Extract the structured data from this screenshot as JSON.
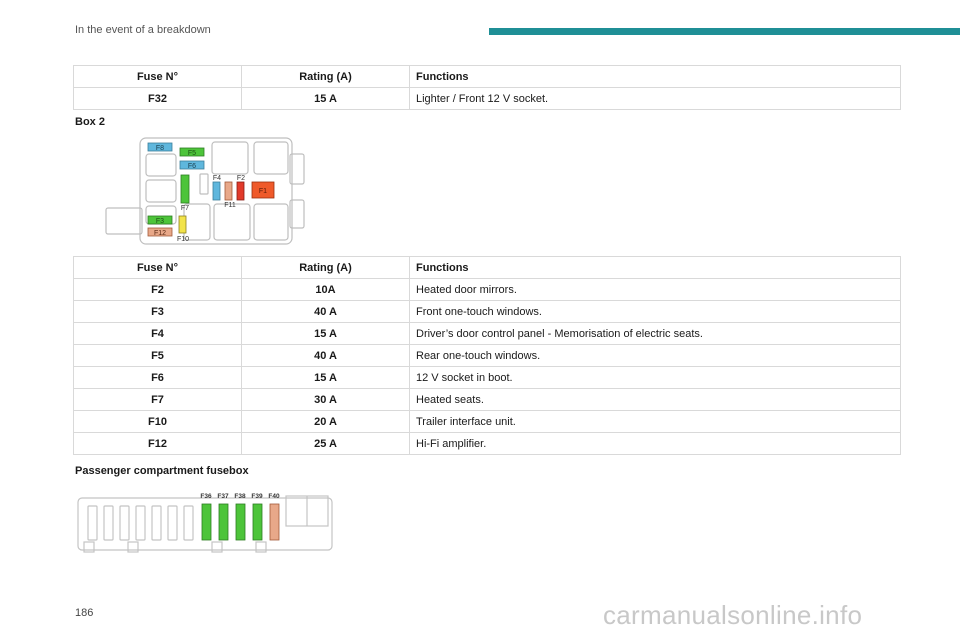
{
  "header": {
    "section_title": "In the event of a breakdown",
    "accent_color": "#1f8f96"
  },
  "table_columns": {
    "fuse": "Fuse N°",
    "rating": "Rating (A)",
    "functions": "Functions"
  },
  "table1": [
    {
      "fuse": "F32",
      "rating": "15 A",
      "function": "Lighter / Front 12 V socket."
    }
  ],
  "box2_label": "Box 2",
  "box2_diagram": {
    "fuse_labels": {
      "f8": "F8",
      "f5": "F5",
      "f6": "F6",
      "f4": "F4",
      "f2": "F2",
      "f1": "F1",
      "f7": "F7",
      "f11": "F11",
      "f3": "F3",
      "f12": "F12",
      "f10": "F10"
    }
  },
  "table2": [
    {
      "fuse": "F2",
      "rating": "10A",
      "function": "Heated door mirrors."
    },
    {
      "fuse": "F3",
      "rating": "40 A",
      "function": "Front one-touch windows."
    },
    {
      "fuse": "F4",
      "rating": "15 A",
      "function": "Driver’s door control panel - Memorisation of electric seats."
    },
    {
      "fuse": "F5",
      "rating": "40 A",
      "function": "Rear one-touch windows."
    },
    {
      "fuse": "F6",
      "rating": "15 A",
      "function": "12 V socket in boot."
    },
    {
      "fuse": "F7",
      "rating": "30 A",
      "function": "Heated seats."
    },
    {
      "fuse": "F10",
      "rating": "20 A",
      "function": "Trailer interface unit."
    },
    {
      "fuse": "F12",
      "rating": "25 A",
      "function": "Hi-Fi amplifier."
    }
  ],
  "passenger_label": "Passenger compartment fusebox",
  "passenger_diagram": {
    "fuse_labels": {
      "f36": "F36",
      "f37": "F37",
      "f38": "F38",
      "f39": "F39",
      "f40": "F40"
    }
  },
  "page_number": "186",
  "watermark": "carmanualsonline.info"
}
